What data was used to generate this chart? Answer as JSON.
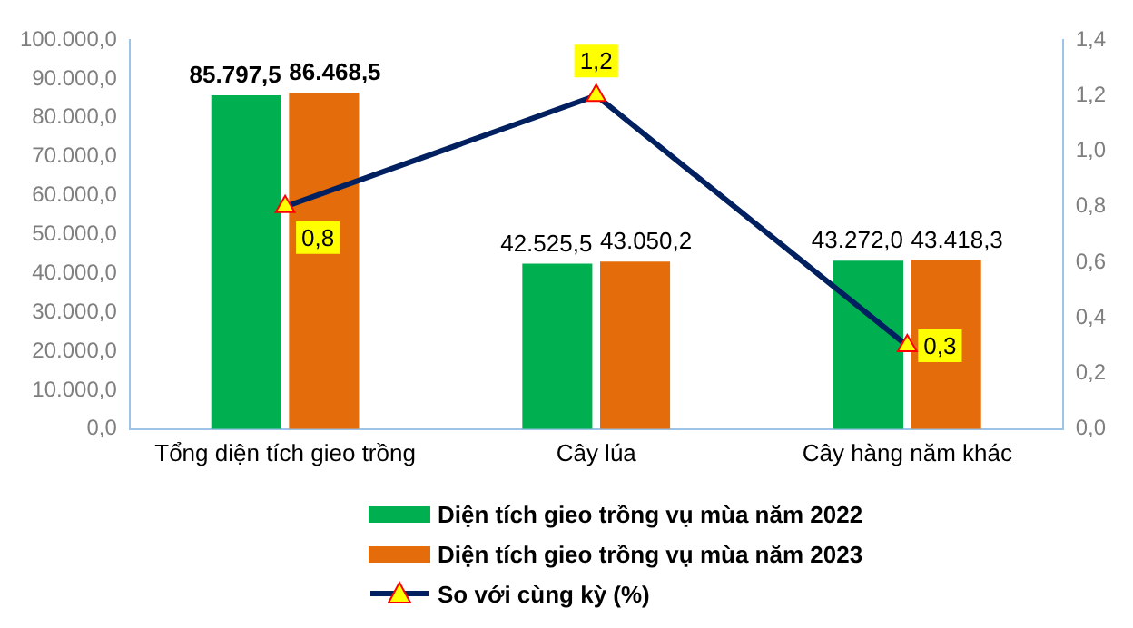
{
  "chart_data": {
    "type": "bar",
    "categories": [
      "Tổng diện tích gieo trồng",
      "Cây lúa",
      "Cây hàng năm khác"
    ],
    "series": [
      {
        "name": "Diện tích gieo trồng vụ mùa năm 2022",
        "color": "#00b050",
        "values": [
          85797.5,
          42525.5,
          43272.0
        ],
        "value_labels": [
          "85.797,5",
          "42.525,5",
          "43.272,0"
        ]
      },
      {
        "name": "Diện tích gieo trồng vụ mùa năm 2023",
        "color": "#e46c0a",
        "values": [
          86468.5,
          43050.2,
          43418.3
        ],
        "value_labels": [
          "86.468,5",
          "43.050,2",
          "43.418,3"
        ]
      },
      {
        "name": "So với cùng kỳ (%)",
        "type": "line",
        "axis": "y2",
        "color": "#002060",
        "marker": "triangle",
        "values": [
          0.8,
          1.2,
          0.3
        ],
        "value_labels": [
          "0,8",
          "1,2",
          "0,3"
        ]
      }
    ],
    "ylim": [
      0,
      100000
    ],
    "yticks": [
      {
        "value": 0,
        "label": "0,0"
      },
      {
        "value": 10000,
        "label": "10.000,0"
      },
      {
        "value": 20000,
        "label": "20.000,0"
      },
      {
        "value": 30000,
        "label": "30.000,0"
      },
      {
        "value": 40000,
        "label": "40.000,0"
      },
      {
        "value": 50000,
        "label": "50.000,0"
      },
      {
        "value": 60000,
        "label": "60.000,0"
      },
      {
        "value": 70000,
        "label": "70.000,0"
      },
      {
        "value": 80000,
        "label": "80.000,0"
      },
      {
        "value": 90000,
        "label": "90.000,0"
      },
      {
        "value": 100000,
        "label": "100.000,0"
      }
    ],
    "y2lim": [
      0,
      1.4
    ],
    "y2ticks": [
      {
        "value": 0,
        "label": "0,0"
      },
      {
        "value": 0.2,
        "label": "0,2"
      },
      {
        "value": 0.4,
        "label": "0,4"
      },
      {
        "value": 0.6,
        "label": "0,6"
      },
      {
        "value": 0.8,
        "label": "0,8"
      },
      {
        "value": 1.0,
        "label": "1,0"
      },
      {
        "value": 1.2,
        "label": "1,2"
      },
      {
        "value": 1.4,
        "label": "1,4"
      }
    ],
    "grid": false,
    "legend": "bottom"
  }
}
